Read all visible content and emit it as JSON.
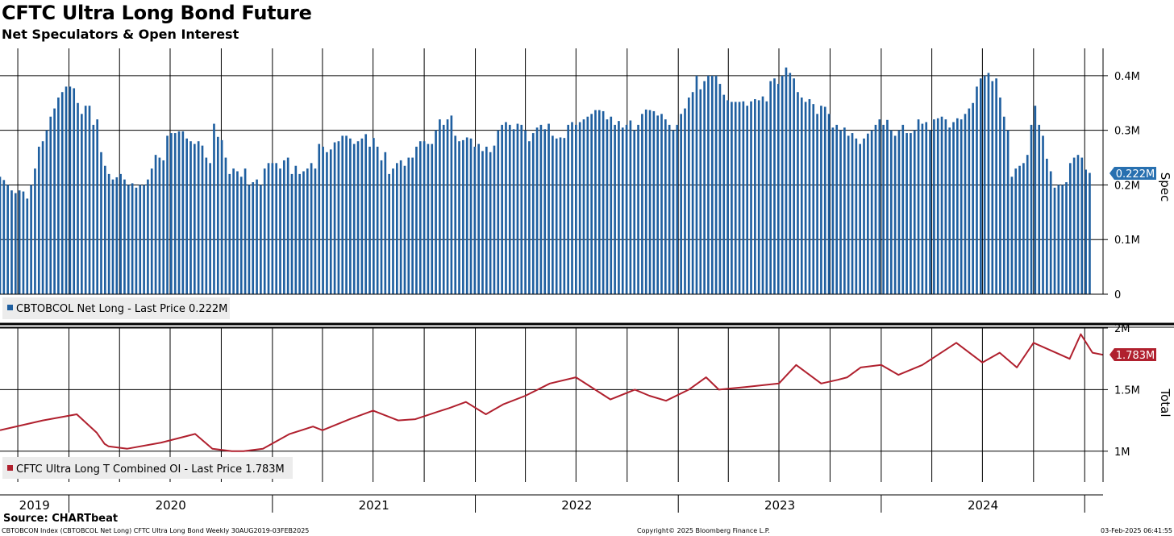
{
  "header": {
    "title": "CFTC Ultra Long Bond Future",
    "subtitle": "Net Speculators & Open Interest"
  },
  "footer": {
    "source": "Source: CHARTbeat",
    "left": "CBTOBCON Index (CBTOBCOL Net Long) CFTC Ultra Long Bond  Weekly 30AUG2019-03FEB2025",
    "center": "Copyright© 2025 Bloomberg Finance L.P.",
    "right": "03-Feb-2025 06:41:55"
  },
  "chart_data": [
    {
      "type": "bar",
      "ylabel": "Spec",
      "ylim": [
        0,
        0.45
      ],
      "yticks": [
        "0",
        "0.1M",
        "0.2M",
        "0.3M",
        "0.4M"
      ],
      "legend": "CBTOBCOL Net Long - Last Price 0.222M",
      "last_value_label": "0.222M",
      "color": "#1f5fa0",
      "label_color": "#2870b0",
      "x_start": "2019-08-30",
      "x_end": "2025-02-03",
      "unit": "millions",
      "weekly_values": [
        0.215,
        0.209,
        0.2,
        0.19,
        0.185,
        0.19,
        0.188,
        0.175,
        0.2,
        0.23,
        0.27,
        0.28,
        0.3,
        0.325,
        0.34,
        0.36,
        0.37,
        0.38,
        0.38,
        0.377,
        0.35,
        0.33,
        0.345,
        0.345,
        0.31,
        0.32,
        0.26,
        0.235,
        0.22,
        0.21,
        0.214,
        0.22,
        0.21,
        0.2,
        0.203,
        0.195,
        0.2,
        0.2,
        0.21,
        0.23,
        0.255,
        0.25,
        0.245,
        0.29,
        0.295,
        0.295,
        0.298,
        0.298,
        0.285,
        0.28,
        0.275,
        0.28,
        0.272,
        0.25,
        0.24,
        0.312,
        0.288,
        0.282,
        0.25,
        0.22,
        0.23,
        0.225,
        0.215,
        0.23,
        0.2,
        0.205,
        0.21,
        0.2,
        0.23,
        0.24,
        0.24,
        0.24,
        0.23,
        0.245,
        0.25,
        0.22,
        0.235,
        0.22,
        0.225,
        0.23,
        0.24,
        0.23,
        0.275,
        0.27,
        0.26,
        0.265,
        0.278,
        0.28,
        0.29,
        0.29,
        0.285,
        0.275,
        0.28,
        0.285,
        0.293,
        0.27,
        0.286,
        0.27,
        0.245,
        0.26,
        0.22,
        0.23,
        0.24,
        0.245,
        0.235,
        0.25,
        0.25,
        0.27,
        0.28,
        0.28,
        0.275,
        0.275,
        0.3,
        0.32,
        0.31,
        0.32,
        0.327,
        0.29,
        0.28,
        0.282,
        0.287,
        0.285,
        0.27,
        0.275,
        0.262,
        0.27,
        0.26,
        0.272,
        0.3,
        0.31,
        0.315,
        0.31,
        0.302,
        0.312,
        0.31,
        0.3,
        0.28,
        0.295,
        0.305,
        0.31,
        0.302,
        0.312,
        0.29,
        0.285,
        0.287,
        0.286,
        0.31,
        0.315,
        0.31,
        0.315,
        0.32,
        0.325,
        0.33,
        0.337,
        0.337,
        0.335,
        0.32,
        0.325,
        0.31,
        0.317,
        0.305,
        0.31,
        0.318,
        0.3,
        0.31,
        0.33,
        0.338,
        0.337,
        0.335,
        0.327,
        0.33,
        0.32,
        0.31,
        0.3,
        0.31,
        0.33,
        0.34,
        0.36,
        0.37,
        0.4,
        0.375,
        0.39,
        0.4,
        0.4,
        0.4,
        0.385,
        0.365,
        0.355,
        0.352,
        0.352,
        0.352,
        0.353,
        0.345,
        0.353,
        0.357,
        0.355,
        0.362,
        0.353,
        0.39,
        0.395,
        0.385,
        0.4,
        0.415,
        0.405,
        0.395,
        0.37,
        0.36,
        0.352,
        0.357,
        0.348,
        0.33,
        0.345,
        0.343,
        0.33,
        0.305,
        0.31,
        0.3,
        0.305,
        0.29,
        0.295,
        0.285,
        0.275,
        0.285,
        0.294,
        0.3,
        0.31,
        0.32,
        0.31,
        0.319,
        0.3,
        0.29,
        0.3,
        0.31,
        0.295,
        0.295,
        0.3,
        0.32,
        0.312,
        0.315,
        0.3,
        0.32,
        0.322,
        0.325,
        0.32,
        0.305,
        0.315,
        0.322,
        0.32,
        0.33,
        0.34,
        0.35,
        0.38,
        0.395,
        0.4,
        0.405,
        0.39,
        0.395,
        0.36,
        0.325,
        0.3,
        0.215,
        0.23,
        0.235,
        0.24,
        0.255,
        0.31,
        0.345,
        0.31,
        0.29,
        0.248,
        0.225,
        0.195,
        0.2,
        0.2,
        0.205,
        0.24,
        0.25,
        0.255,
        0.25,
        0.228,
        0.222
      ]
    },
    {
      "type": "line",
      "ylabel": "Total",
      "ylim": [
        0.75,
        2.0
      ],
      "yticks": [
        "1M",
        "1.5M",
        "2M"
      ],
      "legend": "CFTC Ultra Long T Combined OI - Last Price 1.783M",
      "last_value_label": "1.783M",
      "color": "#b0202e",
      "x_start": "2019-08-30",
      "x_end": "2025-02-03",
      "unit": "millions",
      "x": [
        "2019-08-30",
        "2019-11-15",
        "2020-01-15",
        "2020-02-20",
        "2020-03-05",
        "2020-03-12",
        "2020-04-15",
        "2020-06-15",
        "2020-08-15",
        "2020-09-15",
        "2020-10-20",
        "2020-11-10",
        "2020-12-15",
        "2021-02-01",
        "2021-03-15",
        "2021-04-01",
        "2021-05-20",
        "2021-07-01",
        "2021-08-15",
        "2021-09-15",
        "2021-10-25",
        "2021-11-15",
        "2021-12-15",
        "2022-01-20",
        "2022-02-20",
        "2022-04-01",
        "2022-05-15",
        "2022-07-01",
        "2022-09-01",
        "2022-10-15",
        "2022-11-10",
        "2022-12-10",
        "2023-01-20",
        "2023-02-20",
        "2023-03-15",
        "2023-05-01",
        "2023-07-01",
        "2023-08-01",
        "2023-09-15",
        "2023-10-15",
        "2023-11-01",
        "2023-11-25",
        "2024-01-01",
        "2024-02-01",
        "2024-03-15",
        "2024-05-15",
        "2024-07-01",
        "2024-08-01",
        "2024-09-01",
        "2024-10-01",
        "2024-11-20",
        "2024-12-05",
        "2024-12-25",
        "2025-01-15",
        "2025-02-03"
      ],
      "y": [
        1.17,
        1.25,
        1.3,
        1.15,
        1.06,
        1.04,
        1.02,
        1.07,
        1.14,
        1.02,
        1.0,
        1.0,
        1.02,
        1.14,
        1.2,
        1.17,
        1.26,
        1.33,
        1.25,
        1.26,
        1.32,
        1.35,
        1.4,
        1.3,
        1.38,
        1.45,
        1.55,
        1.6,
        1.42,
        1.5,
        1.45,
        1.41,
        1.5,
        1.6,
        1.5,
        1.52,
        1.55,
        1.7,
        1.55,
        1.58,
        1.6,
        1.68,
        1.7,
        1.62,
        1.7,
        1.88,
        1.72,
        1.8,
        1.68,
        1.88,
        1.78,
        1.75,
        1.95,
        1.8,
        1.783
      ]
    }
  ],
  "x_axis": {
    "year_labels": [
      "2019",
      "2020",
      "2021",
      "2022",
      "2023",
      "2024"
    ]
  }
}
